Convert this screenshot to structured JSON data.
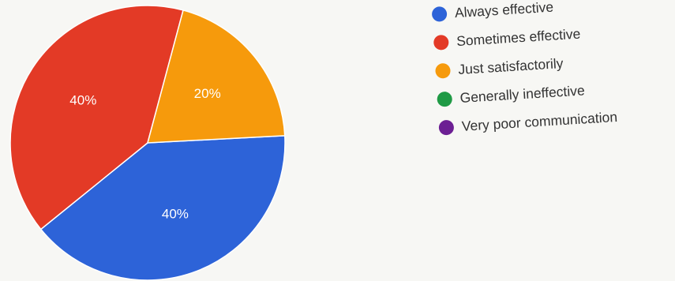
{
  "chart_data": {
    "type": "pie",
    "title": "",
    "slices": [
      {
        "label": "Always effective",
        "value": 40,
        "display": "40%",
        "color": "#2d63d8"
      },
      {
        "label": "Sometimes effective",
        "value": 40,
        "display": "40%",
        "color": "#e33a26"
      },
      {
        "label": "Just satisfactorily",
        "value": 20,
        "display": "20%",
        "color": "#f69a0c"
      },
      {
        "label": "Generally ineffective",
        "value": 0,
        "display": "",
        "color": "#1f9a45"
      },
      {
        "label": "Very poor communication",
        "value": 0,
        "display": "",
        "color": "#6c1f93"
      }
    ],
    "legend_position": "right"
  }
}
